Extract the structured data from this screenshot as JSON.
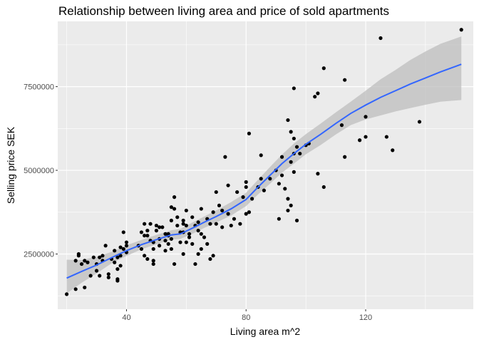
{
  "chart_data": {
    "type": "scatter",
    "title": "Relationship between living area and price of sold apartments",
    "xlabel": "Living area m^2",
    "ylabel": "Selling price SEK",
    "xlim": [
      17,
      156
    ],
    "ylim": [
      850000,
      9450000
    ],
    "xticks": [
      40,
      80,
      120
    ],
    "yticks": [
      2500000,
      5000000,
      7500000
    ],
    "xtick_labels": [
      "40",
      "80",
      "120"
    ],
    "ytick_labels": [
      "2500000",
      "5000000",
      "7500000"
    ],
    "grid": true,
    "background": "#ebebeb",
    "gridline_color": "#ffffff",
    "point_color": "#000000",
    "smooth_color": "#3366ff",
    "ribbon_color": "#bebebe",
    "points": [
      [
        20,
        1300000
      ],
      [
        23,
        2300000
      ],
      [
        23,
        1450000
      ],
      [
        24,
        2450000
      ],
      [
        24,
        2500000
      ],
      [
        25,
        2200000
      ],
      [
        26,
        1500000
      ],
      [
        26,
        2300000
      ],
      [
        27,
        2250000
      ],
      [
        28,
        1850000
      ],
      [
        29,
        2400000
      ],
      [
        30,
        2000000
      ],
      [
        30,
        2200000
      ],
      [
        31,
        2400000
      ],
      [
        31,
        1850000
      ],
      [
        32,
        2450000
      ],
      [
        32,
        2300000
      ],
      [
        33,
        2750000
      ],
      [
        34,
        1900000
      ],
      [
        34,
        1800000
      ],
      [
        35,
        2350000
      ],
      [
        36,
        2600000
      ],
      [
        36,
        2250000
      ],
      [
        37,
        2050000
      ],
      [
        37,
        2400000
      ],
      [
        37,
        1750000
      ],
      [
        37,
        1700000
      ],
      [
        38,
        2450000
      ],
      [
        38,
        2700000
      ],
      [
        38,
        2150000
      ],
      [
        39,
        2650000
      ],
      [
        39,
        3150000
      ],
      [
        40,
        2550000
      ],
      [
        40,
        2750000
      ],
      [
        40,
        2850000
      ],
      [
        44,
        2750000
      ],
      [
        45,
        3150000
      ],
      [
        45,
        2650000
      ],
      [
        46,
        3050000
      ],
      [
        46,
        3400000
      ],
      [
        46,
        2450000
      ],
      [
        47,
        3200000
      ],
      [
        47,
        3050000
      ],
      [
        47,
        2350000
      ],
      [
        48,
        3400000
      ],
      [
        48,
        2900000
      ],
      [
        49,
        2650000
      ],
      [
        49,
        2850000
      ],
      [
        49,
        2200000
      ],
      [
        49,
        2300000
      ],
      [
        50,
        3350000
      ],
      [
        50,
        3200000
      ],
      [
        51,
        2750000
      ],
      [
        51,
        2950000
      ],
      [
        51,
        3300000
      ],
      [
        52,
        3300000
      ],
      [
        53,
        2900000
      ],
      [
        53,
        3100000
      ],
      [
        53,
        2600000
      ],
      [
        54,
        3100000
      ],
      [
        54,
        2800000
      ],
      [
        54,
        3050000
      ],
      [
        55,
        3900000
      ],
      [
        55,
        3500000
      ],
      [
        55,
        2950000
      ],
      [
        55,
        2650000
      ],
      [
        56,
        2200000
      ],
      [
        56,
        3850000
      ],
      [
        56,
        4200000
      ],
      [
        57,
        3350000
      ],
      [
        57,
        3600000
      ],
      [
        58,
        3150000
      ],
      [
        58,
        2850000
      ],
      [
        59,
        3400000
      ],
      [
        59,
        3500000
      ],
      [
        59,
        3150000
      ],
      [
        59,
        2500000
      ],
      [
        60,
        3800000
      ],
      [
        60,
        3350000
      ],
      [
        60,
        2850000
      ],
      [
        61,
        3000000
      ],
      [
        61,
        3100000
      ],
      [
        62,
        2800000
      ],
      [
        62,
        3600000
      ],
      [
        63,
        3350000
      ],
      [
        63,
        2200000
      ],
      [
        64,
        2500000
      ],
      [
        64,
        3200000
      ],
      [
        64,
        3450000
      ],
      [
        65,
        3850000
      ],
      [
        65,
        2650000
      ],
      [
        65,
        3100000
      ],
      [
        66,
        3000000
      ],
      [
        67,
        3550000
      ],
      [
        67,
        2800000
      ],
      [
        68,
        3400000
      ],
      [
        68,
        2350000
      ],
      [
        69,
        3750000
      ],
      [
        69,
        2450000
      ],
      [
        70,
        3400000
      ],
      [
        70,
        4350000
      ],
      [
        71,
        3950000
      ],
      [
        72,
        3800000
      ],
      [
        72,
        3300000
      ],
      [
        73,
        5400000
      ],
      [
        74,
        4550000
      ],
      [
        74,
        3700000
      ],
      [
        75,
        3350000
      ],
      [
        76,
        3550000
      ],
      [
        77,
        4350000
      ],
      [
        78,
        3400000
      ],
      [
        79,
        4200000
      ],
      [
        80,
        4650000
      ],
      [
        80,
        3700000
      ],
      [
        80,
        4500000
      ],
      [
        81,
        6100000
      ],
      [
        81,
        3750000
      ],
      [
        82,
        4150000
      ],
      [
        84,
        4500000
      ],
      [
        85,
        4750000
      ],
      [
        85,
        5450000
      ],
      [
        86,
        4400000
      ],
      [
        88,
        4750000
      ],
      [
        90,
        5000000
      ],
      [
        91,
        3550000
      ],
      [
        91,
        4600000
      ],
      [
        92,
        4850000
      ],
      [
        92,
        5400000
      ],
      [
        93,
        4450000
      ],
      [
        94,
        3800000
      ],
      [
        94,
        4150000
      ],
      [
        94,
        6500000
      ],
      [
        95,
        5250000
      ],
      [
        95,
        6150000
      ],
      [
        95,
        3950000
      ],
      [
        96,
        5500000
      ],
      [
        96,
        5950000
      ],
      [
        96,
        7450000
      ],
      [
        96,
        4950000
      ],
      [
        97,
        5700000
      ],
      [
        97,
        3500000
      ],
      [
        98,
        5500000
      ],
      [
        100,
        5750000
      ],
      [
        101,
        5800000
      ],
      [
        103,
        7200000
      ],
      [
        104,
        7300000
      ],
      [
        104,
        4900000
      ],
      [
        106,
        8050000
      ],
      [
        106,
        4500000
      ],
      [
        112,
        6350000
      ],
      [
        113,
        7700000
      ],
      [
        113,
        5400000
      ],
      [
        118,
        5900000
      ],
      [
        120,
        6600000
      ],
      [
        120,
        6000000
      ],
      [
        125,
        8950000
      ],
      [
        127,
        6000000
      ],
      [
        129,
        5600000
      ],
      [
        138,
        6450000
      ],
      [
        152,
        9200000
      ]
    ],
    "smooth": [
      [
        20,
        1780000
      ],
      [
        25,
        1980000
      ],
      [
        30,
        2170000
      ],
      [
        35,
        2390000
      ],
      [
        40,
        2600000
      ],
      [
        45,
        2780000
      ],
      [
        50,
        2930000
      ],
      [
        55,
        3070000
      ],
      [
        58,
        3100000
      ],
      [
        62,
        3270000
      ],
      [
        66,
        3450000
      ],
      [
        70,
        3620000
      ],
      [
        75,
        3850000
      ],
      [
        80,
        4130000
      ],
      [
        84,
        4500000
      ],
      [
        88,
        4850000
      ],
      [
        92,
        5200000
      ],
      [
        96,
        5500000
      ],
      [
        100,
        5780000
      ],
      [
        105,
        6080000
      ],
      [
        110,
        6400000
      ],
      [
        115,
        6700000
      ],
      [
        120,
        6950000
      ],
      [
        125,
        7180000
      ],
      [
        130,
        7380000
      ],
      [
        135,
        7580000
      ],
      [
        140,
        7760000
      ],
      [
        145,
        7940000
      ],
      [
        152,
        8170000
      ]
    ],
    "ribbon_upper": [
      [
        20,
        2330000
      ],
      [
        25,
        2320000
      ],
      [
        30,
        2420000
      ],
      [
        35,
        2560000
      ],
      [
        40,
        2760000
      ],
      [
        45,
        2920000
      ],
      [
        50,
        3070000
      ],
      [
        55,
        3210000
      ],
      [
        58,
        3250000
      ],
      [
        62,
        3440000
      ],
      [
        66,
        3620000
      ],
      [
        70,
        3800000
      ],
      [
        75,
        4050000
      ],
      [
        80,
        4330000
      ],
      [
        84,
        4720000
      ],
      [
        88,
        5100000
      ],
      [
        92,
        5470000
      ],
      [
        96,
        5800000
      ],
      [
        100,
        6080000
      ],
      [
        105,
        6400000
      ],
      [
        110,
        6730000
      ],
      [
        115,
        7050000
      ],
      [
        120,
        7380000
      ],
      [
        125,
        7720000
      ],
      [
        130,
        8000000
      ],
      [
        135,
        8300000
      ],
      [
        140,
        8550000
      ],
      [
        145,
        8780000
      ],
      [
        152,
        9000000
      ]
    ],
    "ribbon_lower": [
      [
        20,
        1320000
      ],
      [
        25,
        1640000
      ],
      [
        30,
        1920000
      ],
      [
        35,
        2220000
      ],
      [
        40,
        2440000
      ],
      [
        45,
        2640000
      ],
      [
        50,
        2790000
      ],
      [
        55,
        2930000
      ],
      [
        58,
        2950000
      ],
      [
        62,
        3100000
      ],
      [
        66,
        3280000
      ],
      [
        70,
        3440000
      ],
      [
        75,
        3650000
      ],
      [
        80,
        3930000
      ],
      [
        84,
        4280000
      ],
      [
        88,
        4600000
      ],
      [
        92,
        4930000
      ],
      [
        96,
        5200000
      ],
      [
        100,
        5480000
      ],
      [
        105,
        5760000
      ],
      [
        110,
        6070000
      ],
      [
        115,
        6350000
      ],
      [
        120,
        6520000
      ],
      [
        125,
        6640000
      ],
      [
        130,
        6760000
      ],
      [
        135,
        6860000
      ],
      [
        140,
        6960000
      ],
      [
        145,
        7050000
      ],
      [
        152,
        7100000
      ]
    ]
  }
}
